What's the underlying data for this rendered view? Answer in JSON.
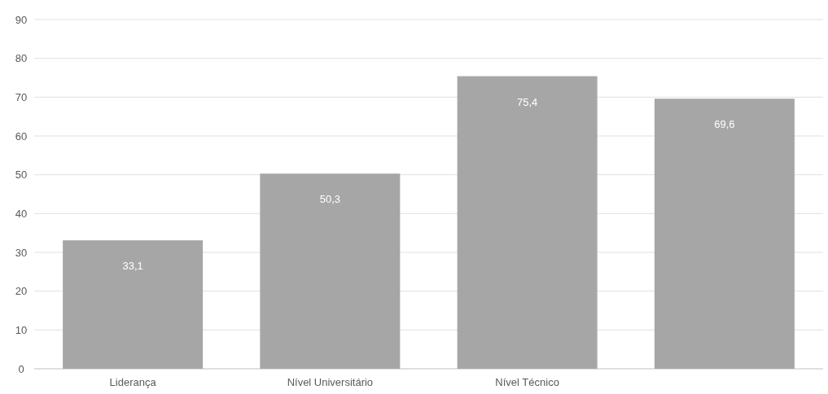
{
  "chart_data": {
    "type": "bar",
    "categories": [
      "Liderança",
      "Nível Universitário",
      "Nível Técnico",
      null
    ],
    "values": [
      33.1,
      50.3,
      75.4,
      69.6
    ],
    "value_labels": [
      "33,1",
      "50,3",
      "75,4",
      "69,6"
    ],
    "color": "#a6a6a6",
    "ylim": [
      0,
      90
    ],
    "yticks": [
      0,
      10,
      20,
      30,
      40,
      50,
      60,
      70,
      80,
      90
    ],
    "grid": "y"
  }
}
